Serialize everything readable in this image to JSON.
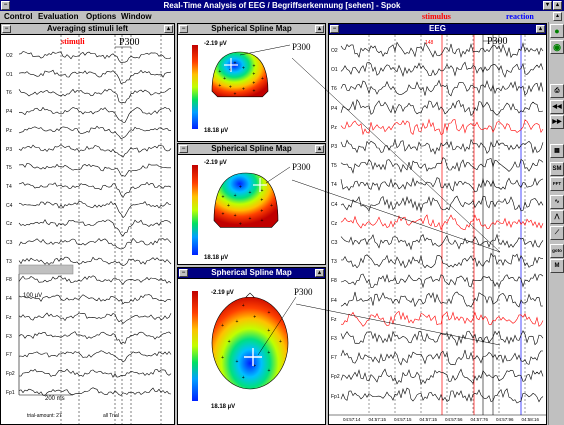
{
  "window": {
    "title": "Real-Time Analysis of EEG  /   Begriffserkennung [sehen] - Spok",
    "sys_glyph": "−",
    "min_glyph": "▾",
    "max_glyph": "▴"
  },
  "menu": {
    "items": [
      "Control",
      "Evaluation",
      "Options",
      "Window"
    ],
    "stimulus": "stimulus",
    "reaction": "reaction"
  },
  "averaging": {
    "title": "Averaging stimuli left",
    "stimuli_label": "stimuli",
    "p300_label": "P300",
    "channels": [
      "O2",
      "O1",
      "T6",
      "P4",
      "Pz",
      "P3",
      "T5",
      "T4",
      "C4",
      "Cz",
      "C3",
      "T3",
      "F8",
      "F4",
      "Fz",
      "F3",
      "F7",
      "Fp2",
      "Fp1"
    ],
    "scale_v": "100  µV",
    "scale_ms": "200  ms",
    "trial_amount": "trial-amount: 27",
    "all_trials": "all Trial"
  },
  "maps": [
    {
      "title": "Spherical Spline Map",
      "min": "-2.19 µV",
      "max": "18.18 µV",
      "p300": "P300",
      "view": "back"
    },
    {
      "title": "Spherical Spline Map",
      "min": "-2.19 µV",
      "max": "18.18 µV",
      "p300": "P300",
      "view": "front"
    },
    {
      "title": "Spherical Spline Map",
      "min": "-2.19 µV",
      "max": "18.18 µV",
      "p300": "P300",
      "view": "top"
    }
  ],
  "eeg": {
    "title": "EEG",
    "p300_label": "P300",
    "marker_148": "148",
    "channels": [
      "O2",
      "O1",
      "T6",
      "P4",
      "Pz",
      "P3",
      "T5",
      "T4",
      "C4",
      "Cz",
      "C3",
      "T3",
      "F8",
      "F4",
      "Fz",
      "F3",
      "F7",
      "Fp2",
      "Fp1"
    ],
    "red_channels": [
      "Pz",
      "Cz",
      "Fz"
    ],
    "times": [
      "04:57:14",
      "04:57:15",
      "04:57:15",
      "04:57:15",
      "04:57:56",
      "04:57:76",
      "04:57:96",
      "04:58:16"
    ]
  },
  "toolbar": {
    "tools": [
      {
        "name": "record-icon",
        "glyph": "●"
      },
      {
        "name": "stop-icon",
        "glyph": "◉"
      },
      {
        "name": "print-icon",
        "glyph": "⎙"
      },
      {
        "name": "rewind-icon",
        "glyph": "◀◀"
      },
      {
        "name": "forward-icon",
        "glyph": "▶▶"
      },
      {
        "name": "keypad-icon",
        "glyph": "▦"
      },
      {
        "name": "sm-icon",
        "glyph": "SM"
      },
      {
        "name": "fft-icon",
        "glyph": "FFT"
      },
      {
        "name": "wave-icon",
        "glyph": "∿"
      },
      {
        "name": "spike-icon",
        "glyph": "⋀"
      },
      {
        "name": "slope-icon",
        "glyph": "⟋"
      },
      {
        "name": "goto-icon",
        "glyph": "goto"
      },
      {
        "name": "marker-icon",
        "glyph": "M"
      }
    ]
  },
  "colors": {
    "title_bar": "#000080",
    "red_trace": "#ff0000",
    "blue_marker": "#0000ff"
  }
}
